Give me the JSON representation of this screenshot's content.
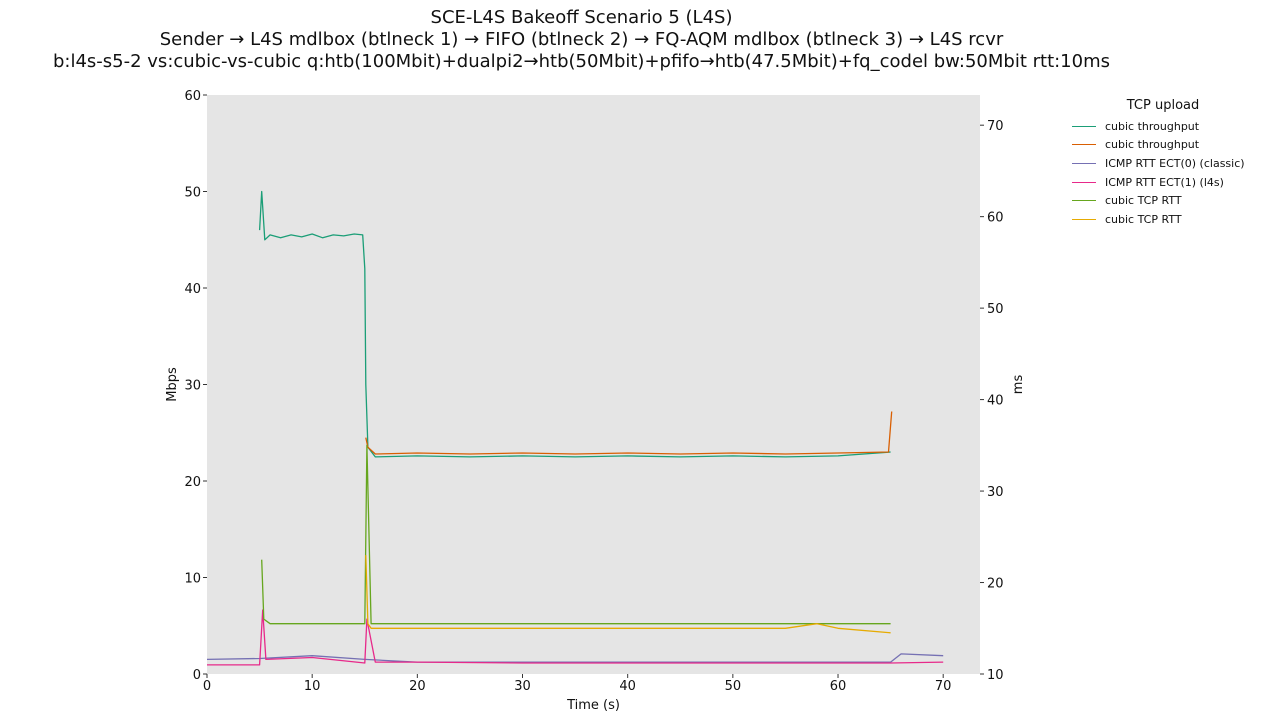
{
  "title_lines": [
    "SCE-L4S Bakeoff Scenario 5 (L4S)",
    "Sender → L4S mdlbox (btlneck 1) → FIFO (btlneck 2) → FQ-AQM mdlbox (btlneck 3) → L4S rcvr",
    "b:l4s-s5-2 vs:cubic-vs-cubic q:htb(100Mbit)+dualpi2→htb(50Mbit)+pfifo→htb(47.5Mbit)+fq_codel bw:50Mbit rtt:10ms"
  ],
  "chart_data": {
    "type": "line",
    "xlabel": "Time (s)",
    "ylabel": "Mbps",
    "y2label": "ms",
    "xlim": [
      0,
      73.5
    ],
    "ylim": [
      0,
      60
    ],
    "y2lim": [
      10,
      73.3
    ],
    "xticks": [
      0,
      10,
      20,
      30,
      40,
      50,
      60,
      70
    ],
    "yticks": [
      0,
      10,
      20,
      30,
      40,
      50,
      60
    ],
    "y2ticks": [
      10,
      20,
      30,
      40,
      50,
      60,
      70
    ],
    "grid": false,
    "plot_background": "#e5e5e5",
    "legend": {
      "title": "TCP upload",
      "placement": "outside-right",
      "entries": [
        {
          "label": "cubic throughput",
          "color": "#1b9e77"
        },
        {
          "label": "cubic throughput",
          "color": "#d95f02"
        },
        {
          "label": "ICMP RTT ECT(0) (classic)",
          "color": "#7570b3"
        },
        {
          "label": "ICMP RTT ECT(1) (l4s)",
          "color": "#e7298a"
        },
        {
          "label": "cubic TCP RTT",
          "color": "#66a61e"
        },
        {
          "label": "cubic TCP RTT",
          "color": "#e6ab02"
        }
      ]
    },
    "series": [
      {
        "name": "cubic throughput",
        "color": "#1b9e77",
        "axis": "left",
        "x": [
          5.0,
          5.2,
          5.5,
          6,
          7,
          8,
          9,
          10,
          11,
          12,
          13,
          14,
          14.8,
          15.0,
          15.1,
          15.3,
          16,
          20,
          25,
          30,
          35,
          40,
          45,
          50,
          55,
          60,
          65
        ],
        "y": [
          46,
          50,
          45,
          45.5,
          45.2,
          45.5,
          45.3,
          45.6,
          45.2,
          45.5,
          45.4,
          45.6,
          45.5,
          42,
          30,
          23.5,
          22.5,
          22.6,
          22.5,
          22.6,
          22.5,
          22.6,
          22.5,
          22.6,
          22.5,
          22.6,
          23
        ]
      },
      {
        "name": "cubic throughput",
        "color": "#d95f02",
        "axis": "left",
        "x": [
          15.1,
          15.3,
          16,
          20,
          25,
          30,
          35,
          40,
          45,
          50,
          55,
          60,
          64.8,
          65.1
        ],
        "y": [
          24.5,
          23.5,
          22.8,
          22.9,
          22.8,
          22.9,
          22.8,
          22.9,
          22.8,
          22.9,
          22.8,
          22.9,
          23.0,
          27.2
        ]
      },
      {
        "name": "ICMP RTT ECT(0) (classic)",
        "color": "#7570b3",
        "axis": "right",
        "x": [
          0,
          5,
          10,
          15,
          20,
          30,
          40,
          50,
          60,
          65,
          66,
          70
        ],
        "y": [
          11.6,
          11.7,
          12.0,
          11.6,
          11.3,
          11.3,
          11.3,
          11.3,
          11.3,
          11.3,
          12.2,
          12.0
        ]
      },
      {
        "name": "ICMP RTT ECT(1) (l4s)",
        "color": "#e7298a",
        "axis": "right",
        "x": [
          0,
          5,
          5.3,
          5.6,
          10,
          15,
          15.2,
          16,
          20,
          30,
          40,
          50,
          60,
          65,
          70
        ],
        "y": [
          11.0,
          11.0,
          17.0,
          11.6,
          11.8,
          11.2,
          16.0,
          11.3,
          11.3,
          11.2,
          11.2,
          11.2,
          11.2,
          11.2,
          11.3
        ]
      },
      {
        "name": "cubic TCP RTT",
        "color": "#66a61e",
        "axis": "right",
        "x": [
          5.2,
          5.4,
          6,
          8,
          10,
          12,
          14,
          15.0,
          15.2,
          15.6,
          20,
          30,
          40,
          50,
          60,
          65
        ],
        "y": [
          22.5,
          16,
          15.5,
          15.5,
          15.5,
          15.5,
          15.5,
          15.5,
          35,
          15.5,
          15.5,
          15.5,
          15.5,
          15.5,
          15.5,
          15.5
        ]
      },
      {
        "name": "cubic TCP RTT",
        "color": "#e6ab02",
        "axis": "right",
        "x": [
          15.1,
          15.3,
          15.6,
          20,
          30,
          40,
          50,
          55,
          58,
          60,
          65
        ],
        "y": [
          23.0,
          15.5,
          15.0,
          15.0,
          15.0,
          15.0,
          15.0,
          15.0,
          15.5,
          15.0,
          14.5
        ]
      }
    ]
  }
}
